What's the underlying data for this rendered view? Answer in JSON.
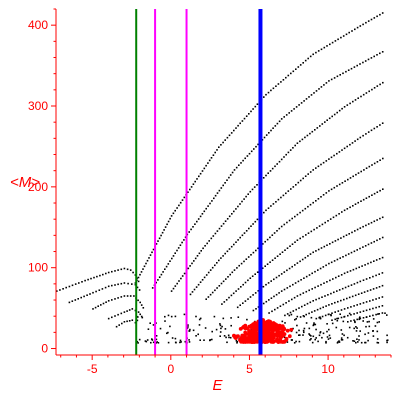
{
  "chart_data": {
    "type": "scatter",
    "title": "",
    "xlabel": "E",
    "ylabel": "<M>",
    "xlim": [
      -7.3,
      14.0
    ],
    "ylim": [
      -8,
      420
    ],
    "x_ticks": [
      -5,
      0,
      5,
      10
    ],
    "y_ticks": [
      0,
      100,
      200,
      300,
      400
    ],
    "grid": false,
    "legend": "none",
    "colors": {
      "axes": "#ff0000",
      "curves": "#000000",
      "cluster": "#ff0000",
      "green_line": "#008000",
      "magenta_line": "#ff00ff",
      "blue_line": "#0000ff"
    },
    "vertical_lines": [
      {
        "x": -2.2,
        "color": "#008000",
        "width": 2
      },
      {
        "x": -1.0,
        "color": "#ff00ff",
        "width": 2
      },
      {
        "x": 1.0,
        "color": "#ff00ff",
        "width": 2
      },
      {
        "x": 5.7,
        "color": "#0000ff",
        "width": 4
      }
    ],
    "series": [
      {
        "type": "curve",
        "points": [
          [
            -2.3,
            82
          ],
          [
            0,
            165
          ],
          [
            3,
            250
          ],
          [
            6,
            315
          ],
          [
            9,
            365
          ],
          [
            12,
            400
          ],
          [
            13.6,
            418
          ]
        ]
      },
      {
        "type": "curve",
        "points": [
          [
            -1.2,
            76
          ],
          [
            1,
            142
          ],
          [
            4,
            222
          ],
          [
            7,
            285
          ],
          [
            10,
            332
          ],
          [
            13.6,
            370
          ]
        ]
      },
      {
        "type": "curve",
        "points": [
          [
            0,
            72
          ],
          [
            2,
            125
          ],
          [
            5,
            195
          ],
          [
            8,
            255
          ],
          [
            11,
            300
          ],
          [
            13.6,
            332
          ]
        ]
      },
      {
        "type": "curve",
        "points": [
          [
            1.2,
            68
          ],
          [
            3,
            110
          ],
          [
            6,
            172
          ],
          [
            9,
            222
          ],
          [
            12,
            262
          ],
          [
            13.6,
            282
          ]
        ]
      },
      {
        "type": "curve",
        "points": [
          [
            2.2,
            62
          ],
          [
            4,
            98
          ],
          [
            7,
            152
          ],
          [
            10,
            196
          ],
          [
            13.6,
            238
          ]
        ]
      },
      {
        "type": "curve",
        "points": [
          [
            3.2,
            56
          ],
          [
            5,
            88
          ],
          [
            8,
            135
          ],
          [
            11,
            172
          ],
          [
            13.6,
            200
          ]
        ]
      },
      {
        "type": "curve",
        "points": [
          [
            4.2,
            52
          ],
          [
            6,
            80
          ],
          [
            9,
            120
          ],
          [
            12,
            150
          ],
          [
            13.6,
            165
          ]
        ]
      },
      {
        "type": "curve",
        "points": [
          [
            5.2,
            48
          ],
          [
            7,
            72
          ],
          [
            10,
            106
          ],
          [
            13.6,
            140
          ]
        ]
      },
      {
        "type": "curve",
        "points": [
          [
            6.2,
            45
          ],
          [
            8,
            66
          ],
          [
            11,
            94
          ],
          [
            13.6,
            115
          ]
        ]
      },
      {
        "type": "curve",
        "points": [
          [
            7.2,
            42
          ],
          [
            9,
            60
          ],
          [
            12,
            84
          ],
          [
            13.6,
            96
          ]
        ]
      },
      {
        "type": "curve",
        "points": [
          [
            8.2,
            40
          ],
          [
            10,
            55
          ],
          [
            13.6,
            80
          ]
        ]
      },
      {
        "type": "curve",
        "points": [
          [
            9.2,
            38
          ],
          [
            11,
            50
          ],
          [
            13.6,
            66
          ]
        ]
      },
      {
        "type": "curve",
        "points": [
          [
            10.2,
            36
          ],
          [
            12,
            46
          ],
          [
            13.6,
            55
          ]
        ]
      },
      {
        "type": "curve",
        "points": [
          [
            11.2,
            34
          ],
          [
            13.6,
            46
          ]
        ]
      },
      {
        "type": "curve",
        "points": [
          [
            -7.3,
            72
          ],
          [
            -5.5,
            85
          ],
          [
            -4,
            95
          ],
          [
            -3,
            100
          ],
          [
            -2.6,
            98
          ],
          [
            -2.3,
            92
          ],
          [
            -2.0,
            80
          ]
        ]
      },
      {
        "type": "curve",
        "points": [
          [
            -6.5,
            58
          ],
          [
            -5,
            70
          ],
          [
            -4,
            78
          ],
          [
            -3,
            82
          ],
          [
            -2.3,
            80
          ],
          [
            -1.9,
            70
          ]
        ]
      },
      {
        "type": "curve",
        "points": [
          [
            -5,
            50
          ],
          [
            -4,
            60
          ],
          [
            -3,
            66
          ],
          [
            -2.4,
            66
          ],
          [
            -2.0,
            58
          ],
          [
            -1.7,
            48
          ]
        ]
      },
      {
        "type": "curve",
        "points": [
          [
            -4,
            38
          ],
          [
            -3,
            46
          ],
          [
            -2.5,
            50
          ],
          [
            -2.1,
            46
          ],
          [
            -1.8,
            38
          ]
        ]
      },
      {
        "type": "curve",
        "points": [
          [
            -3.5,
            28
          ],
          [
            -3,
            34
          ],
          [
            -2.5,
            36
          ],
          [
            -2.1,
            30
          ]
        ]
      }
    ],
    "scatter_region": {
      "color": "#000000",
      "x_range": [
        -2.2,
        13.8
      ],
      "y_range": [
        8,
        45
      ],
      "count": 260
    },
    "cluster": {
      "color": "#ff0000",
      "x_range": [
        3.7,
        8.1
      ],
      "y_range": [
        8,
        36
      ],
      "count": 320
    }
  }
}
